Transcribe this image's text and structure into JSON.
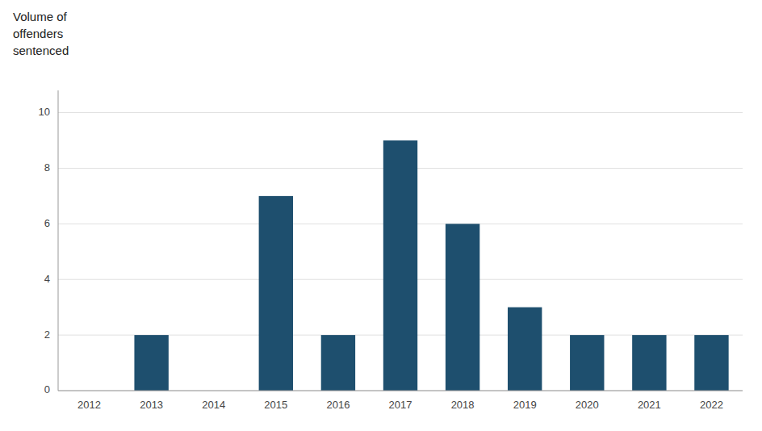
{
  "chart_data": {
    "type": "bar",
    "y_label": "Volume of\noffenders\nsentenced",
    "categories": [
      "2012",
      "2013",
      "2014",
      "2015",
      "2016",
      "2017",
      "2018",
      "2019",
      "2020",
      "2021",
      "2022"
    ],
    "values": [
      0,
      2,
      0,
      7,
      2,
      9,
      6,
      3,
      2,
      2,
      2
    ],
    "color": "#1e4f6e",
    "ylim": [
      0,
      10.8
    ],
    "yticks": [
      0,
      2,
      4,
      6,
      8,
      10
    ],
    "grid": true
  }
}
